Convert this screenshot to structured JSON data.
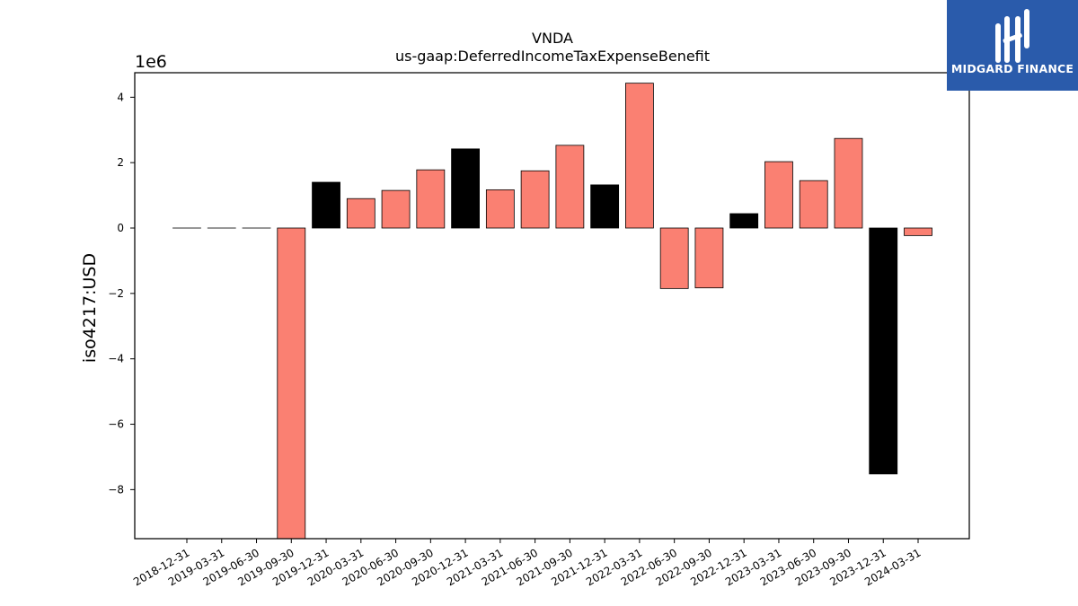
{
  "chart_data": {
    "type": "bar",
    "title": "VNDA",
    "subtitle": "us-gaap:DeferredIncomeTaxExpenseBenefit",
    "xlabel": "",
    "ylabel": "iso4217:USD",
    "y_scale_label": "1e6",
    "y_scale_factor": 1000000,
    "ylim": [
      -9500000,
      4750000
    ],
    "yticks": [
      -8,
      -6,
      -4,
      -2,
      0,
      2,
      4
    ],
    "grid": false,
    "colors": {
      "quarter": "#fa8072",
      "year_end": "#000000"
    },
    "categories": [
      "2018-12-31",
      "2019-03-31",
      "2019-06-30",
      "2019-09-30",
      "2019-12-31",
      "2020-03-31",
      "2020-06-30",
      "2020-09-30",
      "2020-12-31",
      "2021-03-31",
      "2021-06-30",
      "2021-09-30",
      "2021-12-31",
      "2022-03-31",
      "2022-06-30",
      "2022-09-30",
      "2022-12-31",
      "2023-03-31",
      "2023-06-30",
      "2023-09-30",
      "2023-12-31",
      "2024-03-31"
    ],
    "values": [
      0,
      0,
      0,
      -9500000,
      1400000,
      900000,
      1150000,
      1780000,
      2420000,
      1170000,
      1750000,
      2530000,
      1320000,
      4430000,
      -1850000,
      -1830000,
      440000,
      2030000,
      1450000,
      2740000,
      -7520000,
      -230000
    ],
    "year_end": [
      true,
      false,
      false,
      false,
      true,
      false,
      false,
      false,
      true,
      false,
      false,
      false,
      true,
      false,
      false,
      false,
      true,
      false,
      false,
      false,
      true,
      false
    ]
  },
  "logo": {
    "text": "MIDGARD FINANCE"
  }
}
